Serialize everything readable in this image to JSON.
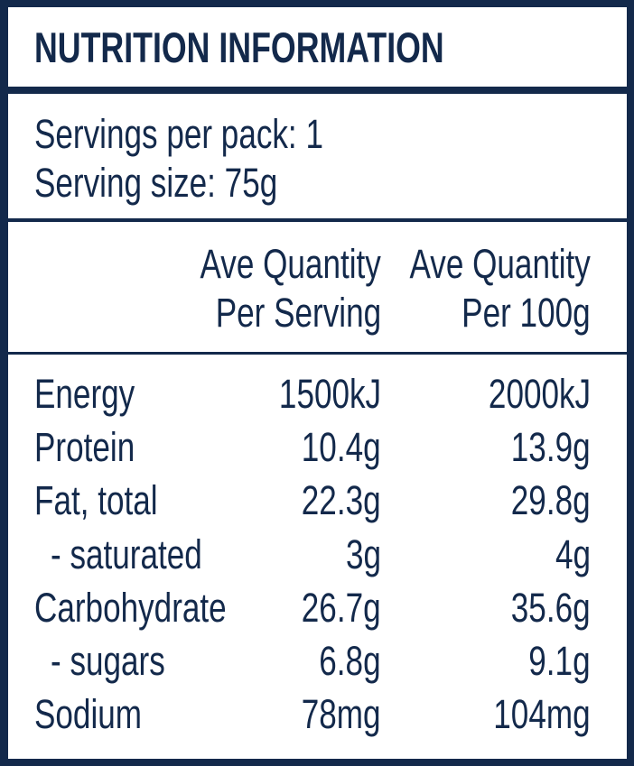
{
  "title": "NUTRITION INFORMATION",
  "servings_per_pack": "Servings per pack: 1",
  "serving_size": "Serving size: 75g",
  "columns": {
    "per_serving": [
      "Ave Quantity",
      "Per Serving"
    ],
    "per_100g": [
      "Ave Quantity",
      "Per 100g"
    ]
  },
  "rows": [
    {
      "label": "Energy",
      "per_serving": "1500kJ",
      "per_100g": "2000kJ"
    },
    {
      "label": "Protein",
      "per_serving": "10.4g",
      "per_100g": "13.9g"
    },
    {
      "label": "Fat, total",
      "per_serving": "22.3g",
      "per_100g": "29.8g"
    },
    {
      "label": " - saturated",
      "per_serving": "3g",
      "per_100g": "4g"
    },
    {
      "label": "Carbohydrate",
      "per_serving": "26.7g",
      "per_100g": "35.6g"
    },
    {
      "label": " - sugars",
      "per_serving": "6.8g",
      "per_100g": "9.1g"
    },
    {
      "label": "Sodium",
      "per_serving": "78mg",
      "per_100g": "104mg"
    }
  ],
  "colors": {
    "ink": "#13294b",
    "background": "#ffffff"
  }
}
